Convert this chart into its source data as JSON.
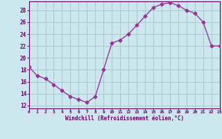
{
  "x": [
    0,
    1,
    2,
    3,
    4,
    5,
    6,
    7,
    8,
    9,
    10,
    11,
    12,
    13,
    14,
    15,
    16,
    17,
    18,
    19,
    20,
    21,
    22,
    23
  ],
  "y": [
    18.5,
    17.0,
    16.5,
    15.5,
    14.5,
    13.5,
    13.0,
    12.5,
    13.5,
    18.0,
    22.5,
    23.0,
    24.0,
    25.5,
    27.0,
    28.5,
    29.0,
    29.3,
    28.8,
    28.0,
    27.5,
    26.0,
    22.0,
    22.0
  ],
  "line_color": "#993399",
  "marker": "D",
  "marker_size": 2.5,
  "bg_color": "#cce8ee",
  "grid_color": "#aac8cc",
  "xlabel": "Windchill (Refroidissement éolien,°C)",
  "xlabel_color": "#660066",
  "tick_color": "#660066",
  "ylim": [
    11.5,
    29.5
  ],
  "xlim": [
    0,
    23
  ],
  "yticks": [
    12,
    14,
    16,
    18,
    20,
    22,
    24,
    26,
    28
  ],
  "xticks": [
    0,
    1,
    2,
    3,
    4,
    5,
    6,
    7,
    8,
    9,
    10,
    11,
    12,
    13,
    14,
    15,
    16,
    17,
    18,
    19,
    20,
    21,
    22,
    23
  ],
  "xtick_labels": [
    "0",
    "1",
    "2",
    "3",
    "4",
    "5",
    "6",
    "7",
    "8",
    "9",
    "10",
    "11",
    "12",
    "13",
    "14",
    "15",
    "16",
    "17",
    "18",
    "19",
    "20",
    "21",
    "22",
    "23"
  ],
  "ytick_labels": [
    "12",
    "14",
    "16",
    "18",
    "20",
    "22",
    "24",
    "26",
    "28"
  ]
}
